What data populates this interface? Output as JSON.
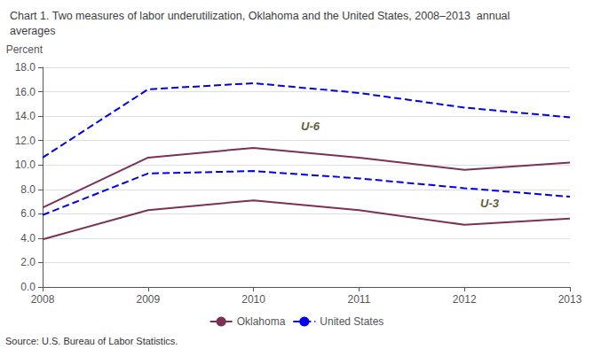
{
  "chart_data": {
    "type": "line",
    "title": "Chart 1. Two measures of labor underutilization, Oklahoma and the United States, 2008–2013  annual\naverages",
    "y_label": "Percent",
    "source": "Source: U.S. Bureau of Labor Statistics.",
    "x": [
      2008,
      2009,
      2010,
      2011,
      2012,
      2013
    ],
    "series": [
      {
        "name": "Oklahoma",
        "color": "#7B3055",
        "line_style": "solid",
        "values": [
          6.5,
          10.6,
          11.4,
          10.6,
          9.6,
          10.2
        ]
      },
      {
        "name": "United States",
        "color": "#0000EE",
        "line_style": "dashed",
        "values": [
          10.6,
          16.2,
          16.7,
          15.9,
          14.7,
          13.9
        ]
      },
      {
        "name": "Oklahoma",
        "color": "#7B3055",
        "line_style": "solid",
        "values": [
          3.9,
          6.3,
          7.1,
          6.3,
          5.1,
          5.6
        ]
      },
      {
        "name": "United States",
        "color": "#0000EE",
        "line_style": "dashed",
        "values": [
          5.9,
          9.3,
          9.5,
          8.9,
          8.1,
          7.4
        ]
      }
    ],
    "annotations": [
      {
        "text": "U-6",
        "x": 2010.45,
        "y": 13.2
      },
      {
        "text": "U-3",
        "x": 2012.15,
        "y": 6.85
      }
    ],
    "xlim": [
      2008,
      2013
    ],
    "xticks": [
      2008,
      2009,
      2010,
      2011,
      2012,
      2013
    ],
    "ylim": [
      0.0,
      18.0
    ],
    "yticks": [
      {
        "value": 0.0,
        "label": "0.0"
      },
      {
        "value": 2.0,
        "label": "2.0"
      },
      {
        "value": 4.0,
        "label": "4.0"
      },
      {
        "value": 6.0,
        "label": "6.0"
      },
      {
        "value": 8.0,
        "label": "8.0"
      },
      {
        "value": 10.0,
        "label": "10.0"
      },
      {
        "value": 12.0,
        "label": "12.0"
      },
      {
        "value": 14.0,
        "label": "14.0"
      },
      {
        "value": 16.0,
        "label": "16.0"
      },
      {
        "value": 18.0,
        "label": "18.0"
      }
    ],
    "grid": true,
    "legend": "bottom"
  }
}
